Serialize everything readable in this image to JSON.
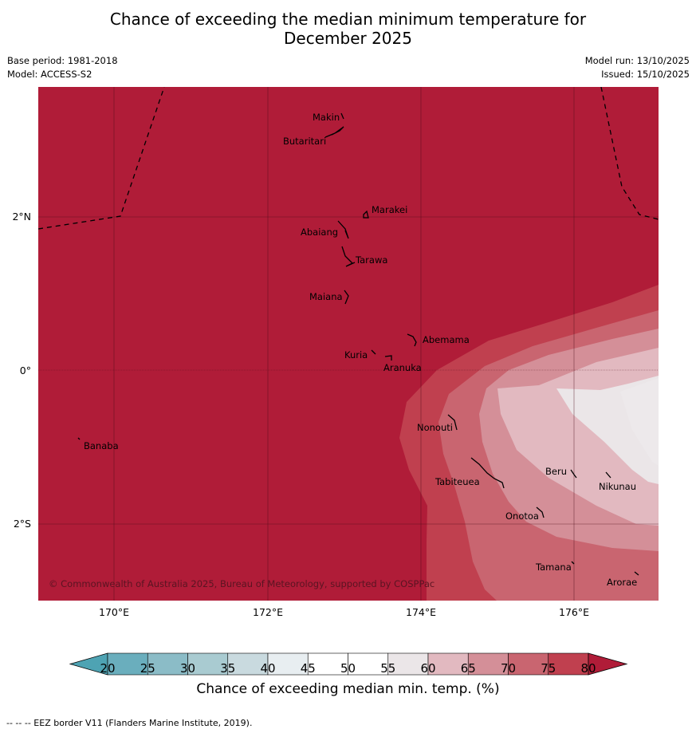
{
  "title_line1": "Chance of exceeding the median minimum temperature for",
  "title_line2": "December 2025",
  "base_period": "Base period: 1981-2018",
  "model": "Model: ACCESS-S2",
  "model_run": "Model run: 13/10/2025",
  "issued": "Issued: 15/10/2025",
  "lat_labels": [
    "2°N",
    "0°",
    "2°S"
  ],
  "lon_labels": [
    "170°E",
    "172°E",
    "174°E",
    "176°E"
  ],
  "islands": [
    "Makin",
    "Butaritari",
    "Marakei",
    "Abaiang",
    "Tarawa",
    "Maiana",
    "Abemama",
    "Kuria",
    "Aranuka",
    "Nonouti",
    "Banaba",
    "Beru",
    "Nikunau",
    "Tabiteuea",
    "Onotoa",
    "Tamana",
    "Arorae"
  ],
  "copyright": "© Commonwealth of Australia 2025, Bureau of Meteorology, supported by COSPPac",
  "colorbar": {
    "label": "Chance of exceeding median min. temp. (%)",
    "ticks": [
      "20",
      "25",
      "30",
      "35",
      "40",
      "45",
      "50",
      "55",
      "60",
      "65",
      "70",
      "75",
      "80"
    ],
    "colors": [
      "#4ea3b3",
      "#6aaebd",
      "#8bbcc7",
      "#a9cbd1",
      "#c9dadf",
      "#e8eef1",
      "#ffffff",
      "#ffffff",
      "#ebe6e8",
      "#e2b9c0",
      "#d48f98",
      "#c96570",
      "#c0404f",
      "#b01c38"
    ]
  },
  "eez_note": "--  --  -- EEZ border V11 (Flanders Marine Institute, 2019)."
}
